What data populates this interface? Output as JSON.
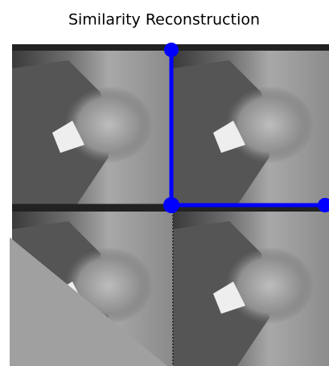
{
  "title": "Similarity Reconstruction"
}
